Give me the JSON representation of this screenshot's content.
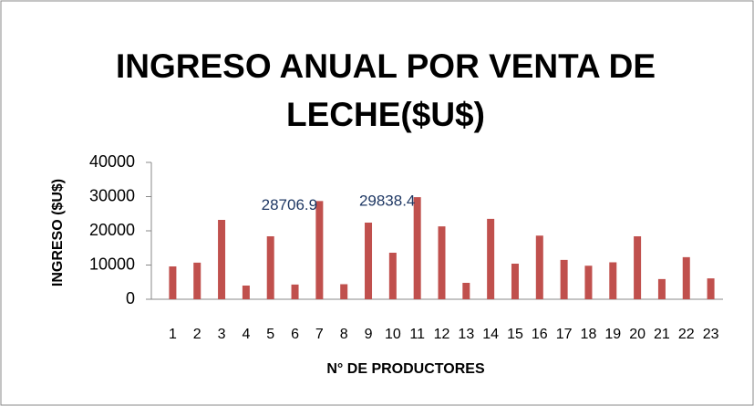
{
  "chart_data": {
    "type": "bar",
    "title": [
      "INGRESO ANUAL POR VENTA DE",
      "LECHE($U$)"
    ],
    "x_label": "N° DE PRODUCTORES",
    "y_label": "INGRESO ($U$)",
    "categories": [
      "1",
      "2",
      "3",
      "4",
      "5",
      "6",
      "7",
      "8",
      "9",
      "10",
      "11",
      "12",
      "13",
      "14",
      "15",
      "16",
      "17",
      "18",
      "19",
      "20",
      "21",
      "22",
      "23"
    ],
    "values": [
      9600,
      10700,
      23200,
      4000,
      18400,
      4300,
      28706.9,
      4400,
      22400,
      13600,
      29838.4,
      21300,
      4800,
      23500,
      10400,
      18600,
      11500,
      9800,
      10800,
      18400,
      5900,
      12300,
      6100
    ],
    "value_labels": [
      null,
      null,
      null,
      null,
      null,
      null,
      "28706.9",
      null,
      null,
      null,
      "29838.4",
      null,
      null,
      null,
      null,
      null,
      null,
      null,
      null,
      null,
      null,
      null,
      null
    ],
    "color": "#c0504d",
    "ylim": [
      0,
      40000
    ],
    "yticks": [
      0,
      10000,
      20000,
      30000,
      40000
    ],
    "grid": false
  }
}
